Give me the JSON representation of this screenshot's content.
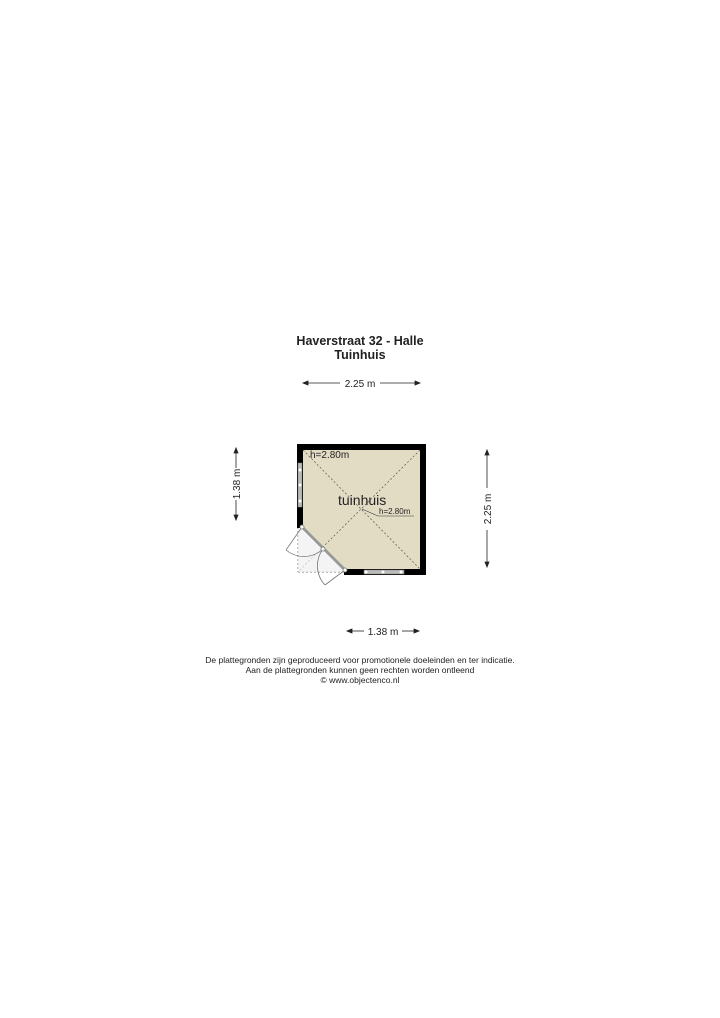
{
  "header": {
    "address": "Haverstraat 32 - Halle",
    "floor": "Tuinhuis"
  },
  "plan": {
    "room_label": "tuinhuis",
    "ceiling_height_1": "h=2.80m",
    "ceiling_height_2": "h=2.80m",
    "floor_color": "#e3dcc4",
    "wall_color": "#000000",
    "dimensions": {
      "top": "2.25 m",
      "bottom": "1.38 m",
      "left": "1.38 m",
      "right": "2.25 m"
    }
  },
  "footer": {
    "line1": "De plattegronden zijn geproduceerd voor promotionele doeleinden en ter indicatie.",
    "line2": "Aan de plattegronden kunnen geen rechten worden ontleend",
    "line3": "© www.objectenco.nl"
  }
}
